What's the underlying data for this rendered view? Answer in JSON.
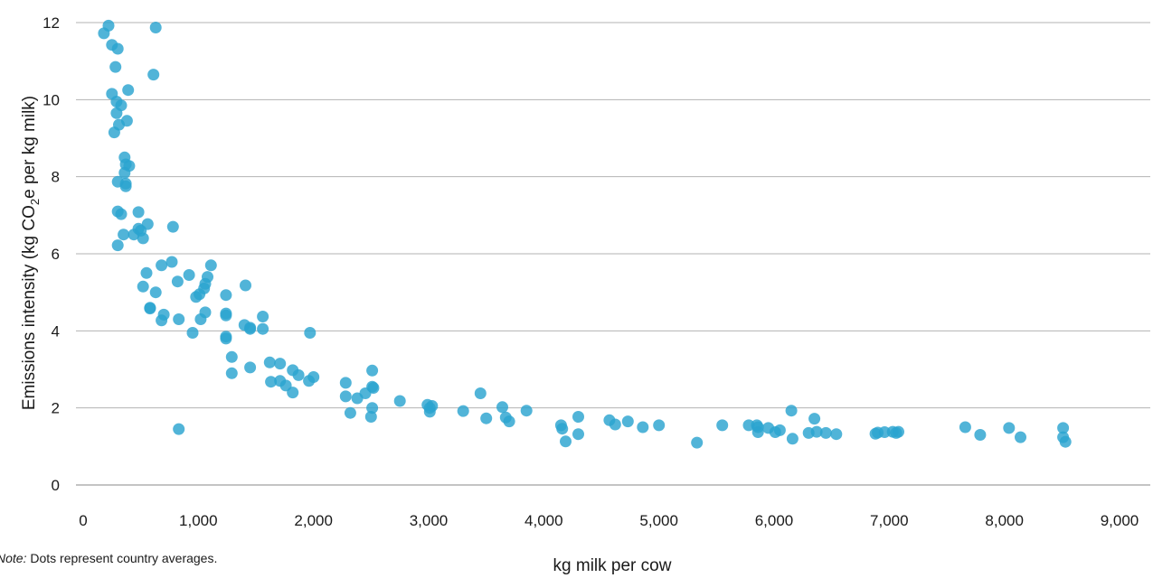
{
  "chart_data": {
    "type": "scatter",
    "title": "",
    "xlabel": "kg milk per cow",
    "ylabel_parts": {
      "before": "Emissions intensity (kg CO",
      "sub": "2",
      "after": "e per kg milk)"
    },
    "xlim": [
      0,
      9000
    ],
    "ylim": [
      0,
      12
    ],
    "x_ticks": [
      0,
      1000,
      2000,
      3000,
      4000,
      5000,
      6000,
      7000,
      8000,
      9000
    ],
    "x_tick_labels": [
      "0",
      "1,000",
      "2,000",
      "3,000",
      "4,000",
      "5,000",
      "6,000",
      "7,000",
      "8,000",
      "9,000"
    ],
    "y_ticks": [
      0,
      2,
      4,
      6,
      8,
      10,
      12
    ],
    "y_tick_labels": [
      "0",
      "2",
      "4",
      "6",
      "8",
      "10",
      "12"
    ],
    "grid": "horizontal",
    "point_color": "#2ba3cf",
    "series": [
      {
        "points": [
          [
            180,
            11.72
          ],
          [
            220,
            11.92
          ],
          [
            250,
            11.42
          ],
          [
            300,
            11.32
          ],
          [
            630,
            11.87
          ],
          [
            280,
            10.85
          ],
          [
            610,
            10.65
          ],
          [
            250,
            10.15
          ],
          [
            390,
            10.25
          ],
          [
            290,
            9.95
          ],
          [
            330,
            9.85
          ],
          [
            290,
            9.65
          ],
          [
            380,
            9.45
          ],
          [
            310,
            9.35
          ],
          [
            270,
            9.15
          ],
          [
            360,
            8.5
          ],
          [
            370,
            8.32
          ],
          [
            400,
            8.28
          ],
          [
            360,
            8.1
          ],
          [
            300,
            7.87
          ],
          [
            370,
            7.82
          ],
          [
            370,
            7.75
          ],
          [
            300,
            7.1
          ],
          [
            330,
            7.03
          ],
          [
            480,
            7.08
          ],
          [
            560,
            6.77
          ],
          [
            780,
            6.7
          ],
          [
            480,
            6.65
          ],
          [
            500,
            6.6
          ],
          [
            440,
            6.5
          ],
          [
            350,
            6.5
          ],
          [
            520,
            6.4
          ],
          [
            300,
            6.22
          ],
          [
            1110,
            5.7
          ],
          [
            680,
            5.7
          ],
          [
            770,
            5.79
          ],
          [
            550,
            5.5
          ],
          [
            920,
            5.45
          ],
          [
            1080,
            5.4
          ],
          [
            820,
            5.28
          ],
          [
            1060,
            5.22
          ],
          [
            1410,
            5.18
          ],
          [
            520,
            5.15
          ],
          [
            1050,
            5.1
          ],
          [
            630,
            5.0
          ],
          [
            1010,
            4.95
          ],
          [
            980,
            4.88
          ],
          [
            1240,
            4.93
          ],
          [
            580,
            4.6
          ],
          [
            580,
            4.58
          ],
          [
            1060,
            4.48
          ],
          [
            1240,
            4.45
          ],
          [
            1240,
            4.4
          ],
          [
            1560,
            4.37
          ],
          [
            700,
            4.42
          ],
          [
            680,
            4.27
          ],
          [
            830,
            4.3
          ],
          [
            1020,
            4.3
          ],
          [
            1400,
            4.15
          ],
          [
            1450,
            4.08
          ],
          [
            1450,
            4.05
          ],
          [
            1560,
            4.05
          ],
          [
            1970,
            3.95
          ],
          [
            950,
            3.95
          ],
          [
            1240,
            3.85
          ],
          [
            1240,
            3.8
          ],
          [
            1290,
            3.32
          ],
          [
            1620,
            3.18
          ],
          [
            1710,
            3.15
          ],
          [
            1450,
            3.05
          ],
          [
            1820,
            2.98
          ],
          [
            1290,
            2.9
          ],
          [
            1870,
            2.85
          ],
          [
            2000,
            2.8
          ],
          [
            1630,
            2.68
          ],
          [
            1710,
            2.7
          ],
          [
            1760,
            2.58
          ],
          [
            1960,
            2.7
          ],
          [
            1820,
            2.4
          ],
          [
            2510,
            2.97
          ],
          [
            2280,
            2.65
          ],
          [
            2510,
            2.55
          ],
          [
            2520,
            2.52
          ],
          [
            3450,
            2.38
          ],
          [
            2450,
            2.38
          ],
          [
            2280,
            2.3
          ],
          [
            2380,
            2.25
          ],
          [
            2750,
            2.18
          ],
          [
            2990,
            2.08
          ],
          [
            3030,
            2.05
          ],
          [
            3010,
            2.0
          ],
          [
            2510,
            2.0
          ],
          [
            3640,
            2.02
          ],
          [
            3010,
            1.9
          ],
          [
            3300,
            1.92
          ],
          [
            3850,
            1.93
          ],
          [
            2320,
            1.87
          ],
          [
            3670,
            1.75
          ],
          [
            2500,
            1.77
          ],
          [
            4300,
            1.77
          ],
          [
            3500,
            1.73
          ],
          [
            4570,
            1.68
          ],
          [
            3700,
            1.65
          ],
          [
            4730,
            1.65
          ],
          [
            6150,
            1.93
          ],
          [
            4150,
            1.55
          ],
          [
            4620,
            1.57
          ],
          [
            4860,
            1.5
          ],
          [
            5000,
            1.55
          ],
          [
            5550,
            1.55
          ],
          [
            6350,
            1.72
          ],
          [
            5780,
            1.55
          ],
          [
            5850,
            1.55
          ],
          [
            5860,
            1.5
          ],
          [
            5950,
            1.48
          ],
          [
            4160,
            1.46
          ],
          [
            6050,
            1.42
          ],
          [
            7660,
            1.5
          ],
          [
            8040,
            1.48
          ],
          [
            8510,
            1.48
          ],
          [
            5860,
            1.37
          ],
          [
            6010,
            1.37
          ],
          [
            6370,
            1.38
          ],
          [
            6450,
            1.35
          ],
          [
            6540,
            1.32
          ],
          [
            6300,
            1.35
          ],
          [
            6880,
            1.33
          ],
          [
            6900,
            1.36
          ],
          [
            6960,
            1.37
          ],
          [
            7030,
            1.38
          ],
          [
            7080,
            1.38
          ],
          [
            7060,
            1.35
          ],
          [
            4300,
            1.32
          ],
          [
            6160,
            1.2
          ],
          [
            7790,
            1.3
          ],
          [
            8140,
            1.24
          ],
          [
            8510,
            1.24
          ],
          [
            8530,
            1.12
          ],
          [
            4190,
            1.13
          ],
          [
            5330,
            1.1
          ],
          [
            830,
            1.45
          ]
        ]
      }
    ]
  },
  "note": {
    "label": "Note:",
    "text": " Dots represent country averages."
  }
}
